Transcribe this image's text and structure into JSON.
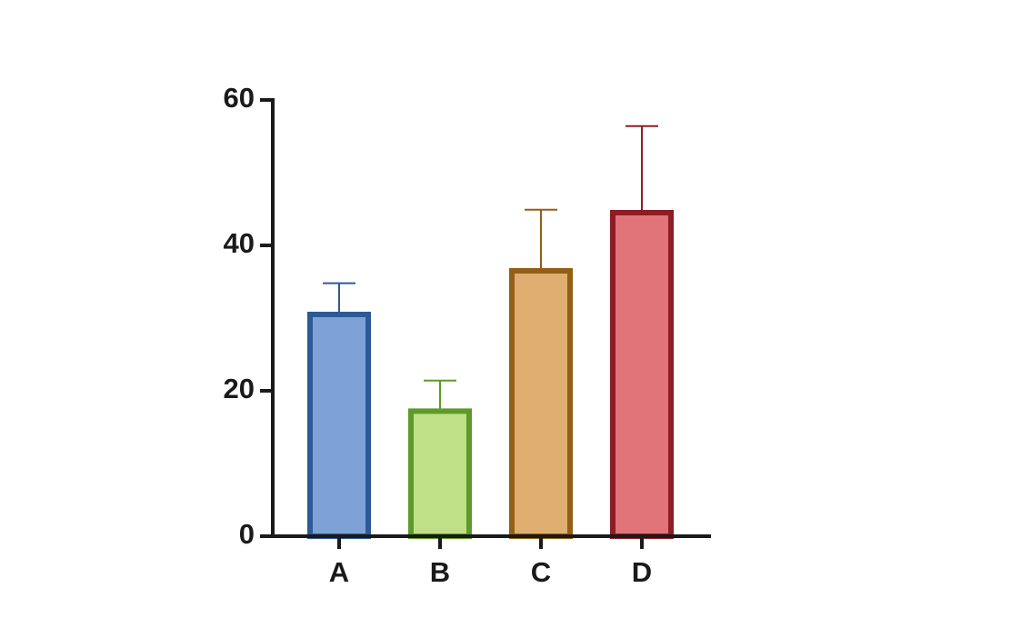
{
  "chart_data": {
    "type": "bar",
    "categories": [
      "A",
      "B",
      "C",
      "D"
    ],
    "values": [
      30.5,
      17.2,
      36.5,
      44.5
    ],
    "errors": [
      4.3,
      4.2,
      8.4,
      11.9
    ],
    "colors": [
      "#7fa2d6",
      "#c0e088",
      "#dfae70",
      "#e07479"
    ],
    "edge_colors": [
      "#2d5a96",
      "#5d9a2a",
      "#935f17",
      "#8d1c24"
    ],
    "ylim": [
      0,
      60
    ],
    "yticks": [
      0,
      20,
      40,
      60
    ]
  }
}
